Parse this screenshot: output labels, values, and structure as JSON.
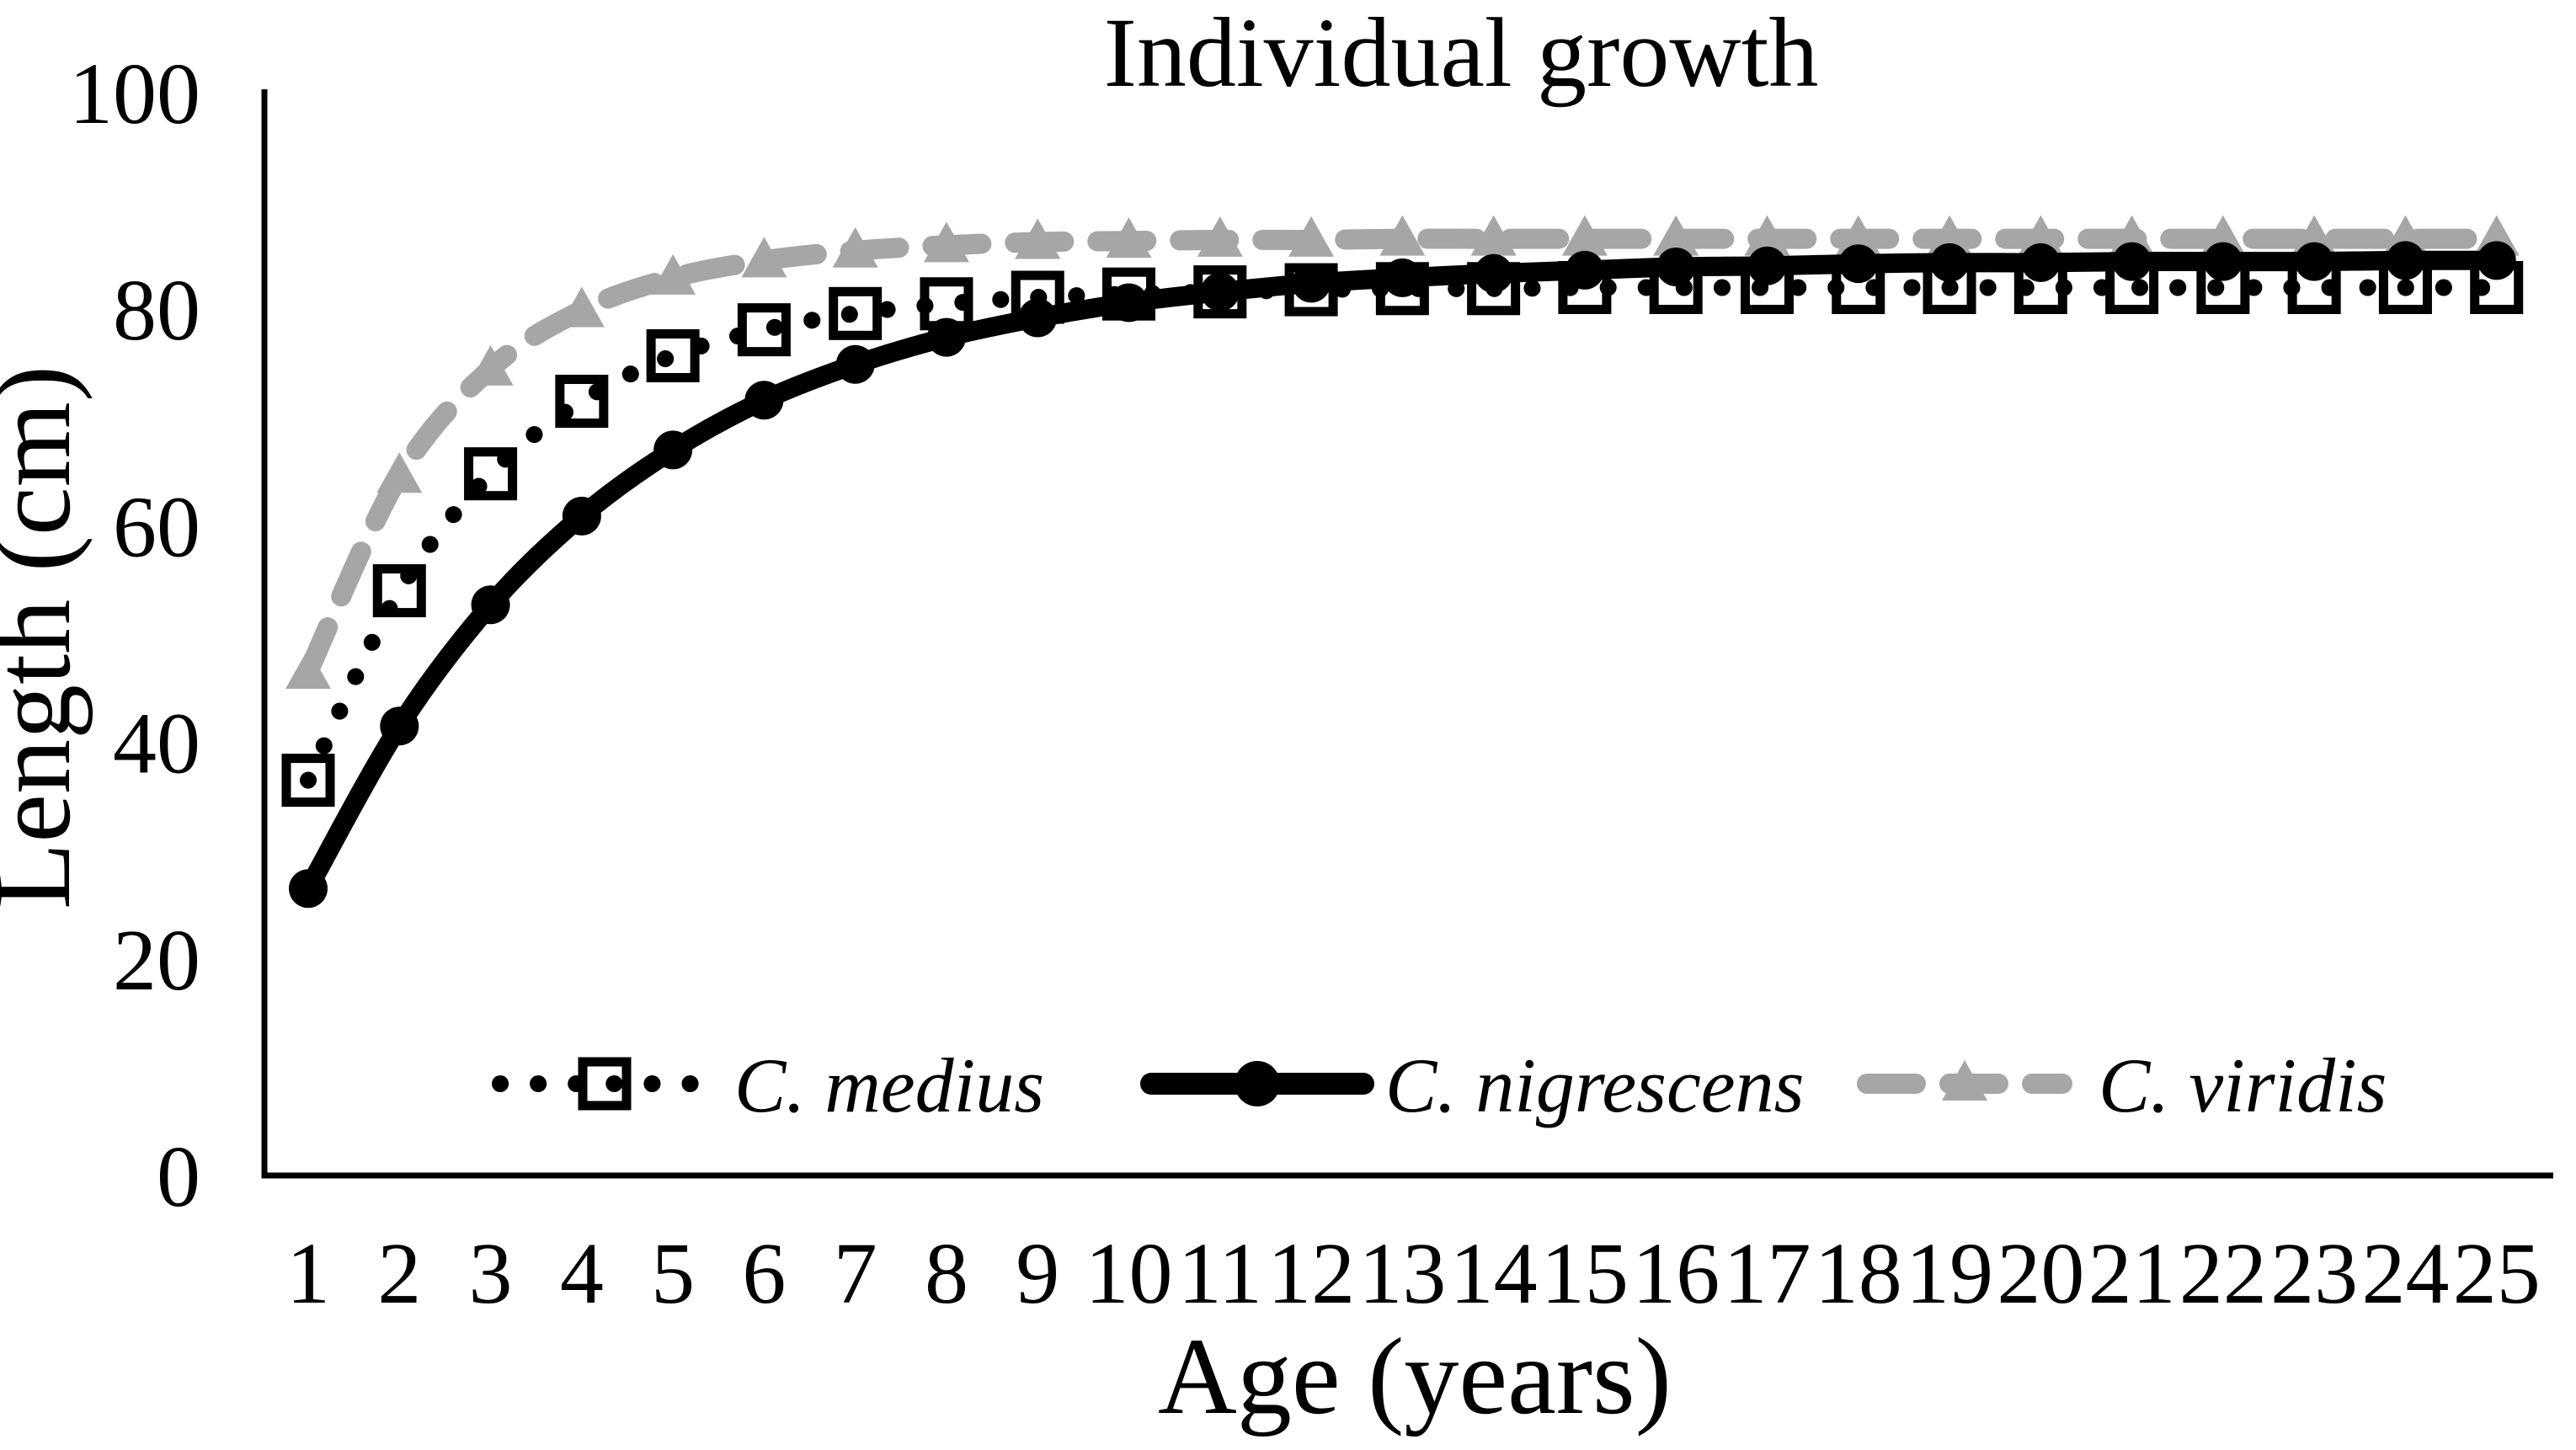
{
  "chart_data": {
    "type": "line",
    "title": "Individual growth",
    "xlabel": "Age (years)",
    "ylabel": "Length (cm)",
    "x": [
      1,
      2,
      3,
      4,
      5,
      6,
      7,
      8,
      9,
      10,
      11,
      12,
      13,
      14,
      15,
      16,
      17,
      18,
      19,
      20,
      21,
      22,
      23,
      24,
      25
    ],
    "xticks": [
      1,
      2,
      3,
      4,
      5,
      6,
      7,
      8,
      9,
      10,
      11,
      12,
      13,
      14,
      15,
      16,
      17,
      18,
      19,
      20,
      21,
      22,
      23,
      24,
      25
    ],
    "ylim": [
      0,
      100
    ],
    "yticks": [
      0,
      20,
      40,
      60,
      80,
      100
    ],
    "grid": false,
    "legend_position": "bottom-center-inside",
    "axis_color": "#000000",
    "background_color": "#ffffff",
    "series": [
      {
        "name": "C. medius",
        "color": "#000000",
        "line_style": "dotted",
        "marker": "open-square",
        "values": [
          36.5,
          54.0,
          64.8,
          71.5,
          75.7,
          78.1,
          79.6,
          80.5,
          81.1,
          81.4,
          81.6,
          81.8,
          81.9,
          81.9,
          82.0,
          82.0,
          82.0,
          82.0,
          82.0,
          82.0,
          82.0,
          82.0,
          82.0,
          82.0,
          82.0
        ]
      },
      {
        "name": "C. nigrescens",
        "color": "#000000",
        "line_style": "solid",
        "marker": "filled-circle",
        "values": [
          26.5,
          41.5,
          52.7,
          60.9,
          67.0,
          71.6,
          74.9,
          77.4,
          79.2,
          80.6,
          81.6,
          82.4,
          82.9,
          83.3,
          83.6,
          83.9,
          84.0,
          84.2,
          84.3,
          84.3,
          84.4,
          84.4,
          84.4,
          84.5,
          84.5
        ]
      },
      {
        "name": "C. viridis",
        "color": "#a6a6a6",
        "line_style": "dashed",
        "marker": "filled-triangle",
        "values": [
          46.5,
          64.6,
          74.5,
          79.9,
          82.9,
          84.5,
          85.4,
          85.9,
          86.2,
          86.3,
          86.4,
          86.4,
          86.5,
          86.5,
          86.5,
          86.5,
          86.5,
          86.5,
          86.5,
          86.5,
          86.5,
          86.5,
          86.5,
          86.5,
          86.5
        ]
      }
    ]
  }
}
